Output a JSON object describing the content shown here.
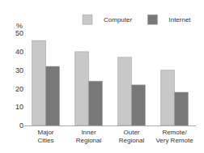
{
  "chart_data": {
    "type": "bar",
    "categories": [
      "Major\nCities",
      "Inner\nRegional",
      "Outer\nRegional",
      "Remote/\nVery Remote"
    ],
    "series": [
      {
        "name": "Computer",
        "color": "#c8c8c8",
        "values": [
          46,
          40,
          37,
          30
        ]
      },
      {
        "name": "Internet",
        "color": "#787878",
        "values": [
          32,
          24,
          22,
          18
        ]
      }
    ],
    "ylabel": "%",
    "ylim": [
      0,
      50
    ],
    "yticks": [
      0,
      10,
      20,
      30,
      40,
      50
    ],
    "grid": false,
    "legend": "upper right"
  }
}
